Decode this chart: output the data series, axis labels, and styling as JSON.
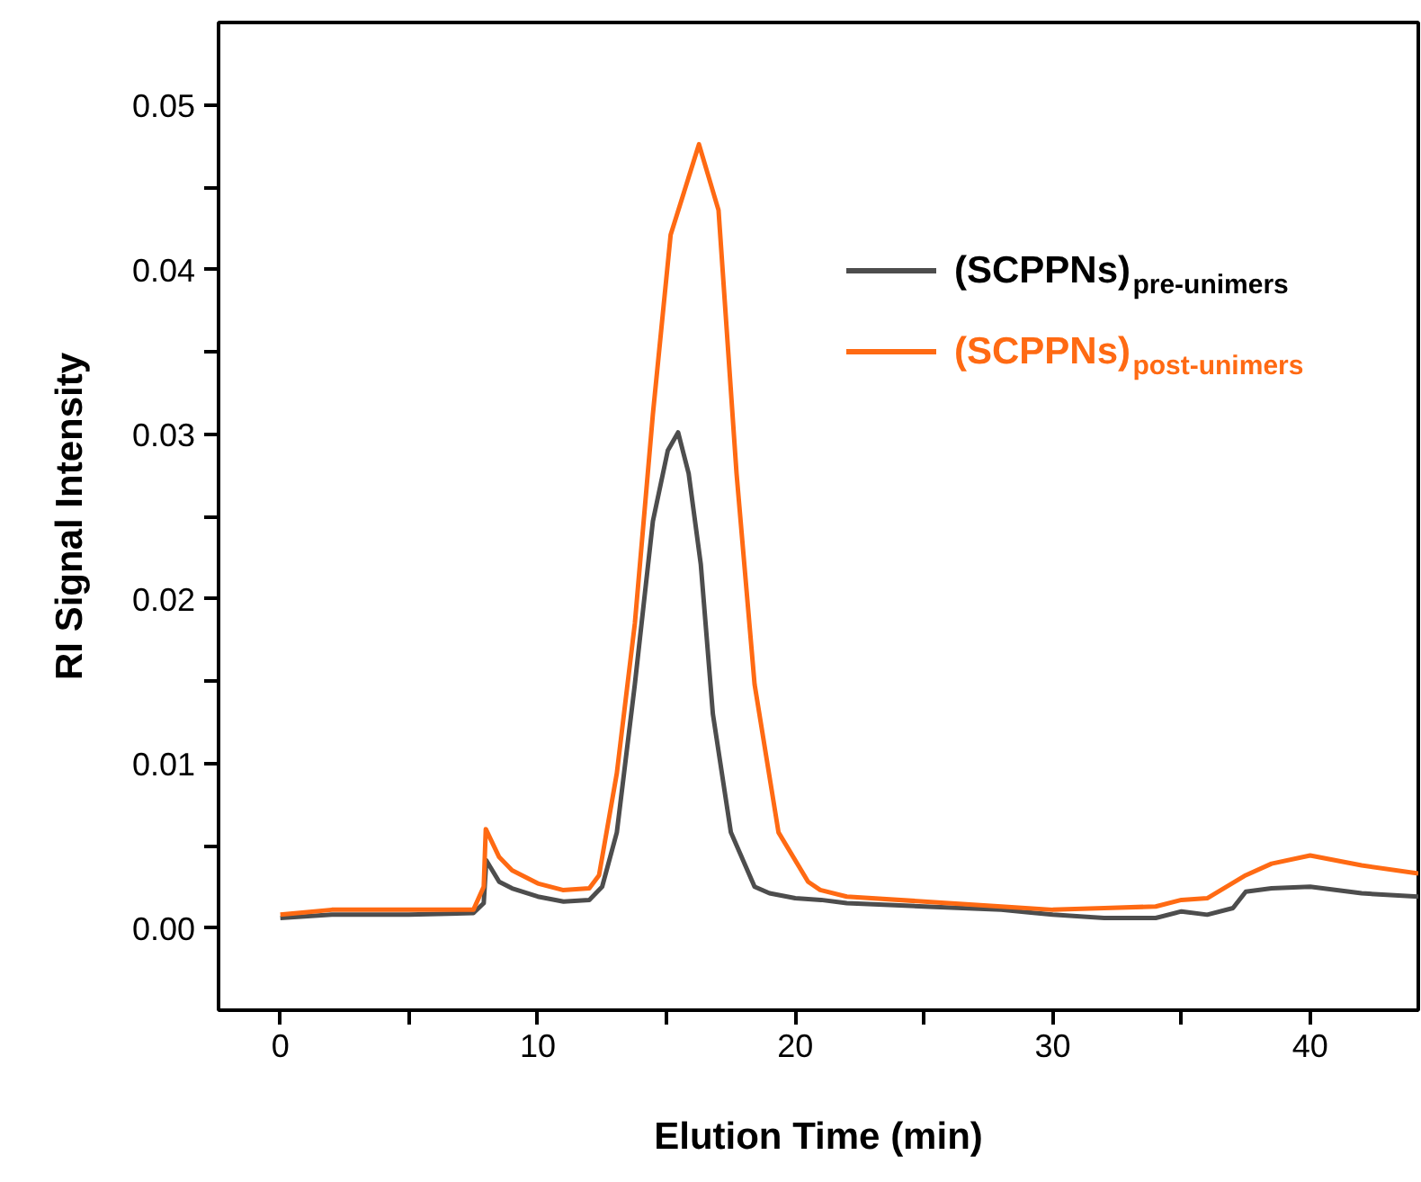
{
  "chart_data": {
    "type": "line",
    "xlabel": "Elution Time (min)",
    "ylabel": "RI Signal Intensity",
    "xlim": [
      -2.4,
      44.2
    ],
    "ylim": [
      -0.005,
      0.055
    ],
    "xticks": [
      0,
      {
        "value": 5,
        "label": null
      },
      10,
      {
        "value": 15,
        "label": null
      },
      20,
      {
        "value": 25,
        "label": null
      },
      30,
      {
        "value": 35,
        "label": null
      },
      40
    ],
    "yticks": [
      {
        "value": 0,
        "label": "0.00"
      },
      {
        "value": 0.005,
        "label": null
      },
      {
        "value": 0.01,
        "label": "0.01"
      },
      {
        "value": 0.015,
        "label": null
      },
      {
        "value": 0.02,
        "label": "0.02"
      },
      {
        "value": 0.025,
        "label": null
      },
      {
        "value": 0.03,
        "label": "0.03"
      },
      {
        "value": 0.035,
        "label": null
      },
      {
        "value": 0.04,
        "label": "0.04"
      },
      {
        "value": 0.045,
        "label": null
      },
      {
        "value": 0.05,
        "label": "0.05"
      }
    ],
    "grid": false,
    "legend": "top right",
    "marker": "none",
    "line_style": "solid",
    "series": [
      {
        "name": "(SCPPNs)$_{pre-unimers}$",
        "color": "#4d4d4d",
        "x": [
          0,
          2,
          5,
          7.5,
          7.9,
          8.0,
          8.5,
          9,
          10,
          11,
          12,
          12.5,
          13.07,
          13.77,
          14.47,
          15.05,
          15.45,
          15.86,
          16.33,
          16.8,
          17.5,
          18.42,
          19,
          20,
          21,
          22,
          25,
          28,
          30,
          32,
          34,
          35,
          36,
          37,
          37.5,
          38.5,
          40,
          42,
          44.2
        ],
        "values": [
          0.0006,
          0.0008,
          0.0008,
          0.0009,
          0.0015,
          0.0041,
          0.0028,
          0.0024,
          0.0019,
          0.0016,
          0.0017,
          0.0025,
          0.0058,
          0.0148,
          0.0247,
          0.029,
          0.0301,
          0.0276,
          0.0221,
          0.013,
          0.0058,
          0.0025,
          0.0021,
          0.0018,
          0.0017,
          0.0015,
          0.0013,
          0.0011,
          0.0008,
          0.0006,
          0.0006,
          0.001,
          0.0008,
          0.0012,
          0.0022,
          0.0024,
          0.0025,
          0.0021,
          0.0019
        ]
      },
      {
        "name": "(SCPPNs)$_{post-unimers}$",
        "color": "#ff6a13",
        "x": [
          0,
          2,
          5,
          7.5,
          7.9,
          7.98,
          8.5,
          9,
          10,
          10.97,
          12,
          12.38,
          13.07,
          13.77,
          14.47,
          15.16,
          16.26,
          17.02,
          17.72,
          18.42,
          19.35,
          20.5,
          20.97,
          22,
          25,
          28,
          30,
          32,
          34,
          35,
          36,
          37.5,
          38.5,
          40,
          42,
          44.2
        ],
        "values": [
          0.0008,
          0.0011,
          0.0011,
          0.0011,
          0.0025,
          0.006,
          0.0043,
          0.0035,
          0.0027,
          0.0023,
          0.0024,
          0.0032,
          0.0094,
          0.0185,
          0.0312,
          0.0421,
          0.0476,
          0.0436,
          0.0276,
          0.0148,
          0.0058,
          0.0028,
          0.0023,
          0.0019,
          0.0016,
          0.0013,
          0.0011,
          0.0012,
          0.0013,
          0.0017,
          0.0018,
          0.0032,
          0.0039,
          0.0044,
          0.0038,
          0.0033
        ]
      }
    ]
  }
}
